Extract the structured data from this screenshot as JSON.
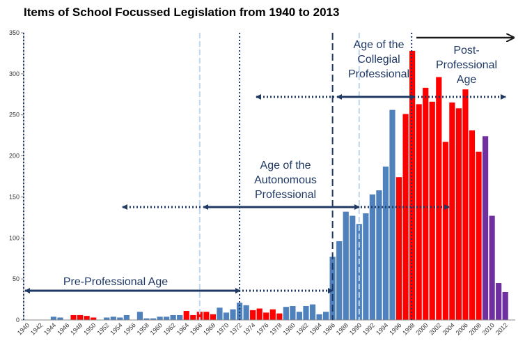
{
  "chart_data": {
    "type": "bar",
    "title": "Items of School Focussed Legislation from 1940 to 2013",
    "xlabel": "",
    "ylabel": "",
    "ylim": [
      0,
      350
    ],
    "yticks": [
      0,
      50,
      100,
      150,
      200,
      250,
      300,
      350
    ],
    "grid": false,
    "legend": "none",
    "categories": [
      "1940",
      "1941",
      "1942",
      "1943",
      "1944",
      "1945",
      "1946",
      "1947",
      "1948",
      "1949",
      "1950",
      "1951",
      "1952",
      "1953",
      "1954",
      "1955",
      "1956",
      "1957",
      "1958",
      "1959",
      "1960",
      "1961",
      "1962",
      "1963",
      "1964",
      "1965",
      "1966",
      "1967",
      "1968",
      "1969",
      "1970",
      "1971",
      "1972",
      "1973",
      "1974",
      "1975",
      "1976",
      "1977",
      "1978",
      "1979",
      "1980",
      "1981",
      "1982",
      "1983",
      "1984",
      "1985",
      "1986",
      "1987",
      "1988",
      "1989",
      "1990",
      "1991",
      "1992",
      "1993",
      "1994",
      "1995",
      "1996",
      "1997",
      "1998",
      "1999",
      "2000",
      "2001",
      "2002",
      "2003",
      "2004",
      "2005",
      "2006",
      "2007",
      "2008",
      "2009",
      "2010",
      "2011",
      "2012",
      "2013"
    ],
    "x_tick_labels": [
      "1940",
      "1942",
      "1944",
      "1946",
      "1948",
      "1950",
      "1952",
      "1954",
      "1956",
      "1958",
      "1960",
      "1962",
      "1964",
      "1966",
      "1968",
      "1970",
      "1972",
      "1974",
      "1976",
      "1978",
      "1980",
      "1982",
      "1984",
      "1986",
      "1988",
      "1990",
      "1992",
      "1994",
      "1996",
      "1998",
      "2000",
      "2002",
      "2004",
      "2006",
      "2008",
      "2010",
      "2012"
    ],
    "values": [
      0,
      0,
      0,
      0,
      4,
      3,
      0,
      6,
      6,
      5,
      3,
      0,
      3,
      4,
      3,
      6,
      0,
      10,
      2,
      2,
      4,
      4,
      6,
      6,
      11,
      6,
      10,
      10,
      7,
      15,
      9,
      13,
      21,
      18,
      12,
      14,
      9,
      13,
      8,
      16,
      17,
      10,
      17,
      19,
      7,
      10,
      77,
      96,
      132,
      127,
      117,
      130,
      153,
      158,
      187,
      256,
      174,
      251,
      328,
      263,
      283,
      266,
      296,
      217,
      265,
      258,
      281,
      231,
      205,
      224,
      127,
      45,
      34,
      0
    ],
    "bar_colors": [
      "#4f81bd",
      "#4f81bd",
      "#4f81bd",
      "#4f81bd",
      "#4f81bd",
      "#4f81bd",
      "#4f81bd",
      "#ff0000",
      "#ff0000",
      "#ff0000",
      "#ff0000",
      "#4f81bd",
      "#4f81bd",
      "#4f81bd",
      "#4f81bd",
      "#4f81bd",
      "#4f81bd",
      "#4f81bd",
      "#4f81bd",
      "#4f81bd",
      "#4f81bd",
      "#4f81bd",
      "#4f81bd",
      "#4f81bd",
      "#ff0000",
      "#ff0000",
      "#ff0000",
      "#ff0000",
      "#ff0000",
      "#4f81bd",
      "#4f81bd",
      "#4f81bd",
      "#4f81bd",
      "#4f81bd",
      "#ff0000",
      "#ff0000",
      "#ff0000",
      "#ff0000",
      "#ff0000",
      "#4f81bd",
      "#4f81bd",
      "#4f81bd",
      "#4f81bd",
      "#4f81bd",
      "#4f81bd",
      "#4f81bd",
      "#4f81bd",
      "#4f81bd",
      "#4f81bd",
      "#4f81bd",
      "#4f81bd",
      "#4f81bd",
      "#4f81bd",
      "#4f81bd",
      "#4f81bd",
      "#4f81bd",
      "#ff0000",
      "#ff0000",
      "#ff0000",
      "#ff0000",
      "#ff0000",
      "#ff0000",
      "#ff0000",
      "#ff0000",
      "#ff0000",
      "#ff0000",
      "#ff0000",
      "#ff0000",
      "#ff0000",
      "#7030a0",
      "#7030a0",
      "#7030a0",
      "#7030a0",
      "#7030a0"
    ],
    "colors": {
      "blue": "#4f81bd",
      "red": "#ff0000",
      "purple": "#7030a0",
      "annotation": "#1f3864",
      "light_line": "#bdd7ee"
    },
    "annotations": [
      {
        "id": "pre-professional",
        "lines": [
          "Pre-Professional Age"
        ]
      },
      {
        "id": "autonomous",
        "lines": [
          "Age of the",
          "Autonomous",
          "Professional"
        ]
      },
      {
        "id": "collegial",
        "lines": [
          "Age of the",
          "Collegial",
          "Professional"
        ]
      },
      {
        "id": "post-professional",
        "lines": [
          "Post-",
          "Professional",
          "Age"
        ]
      }
    ]
  }
}
